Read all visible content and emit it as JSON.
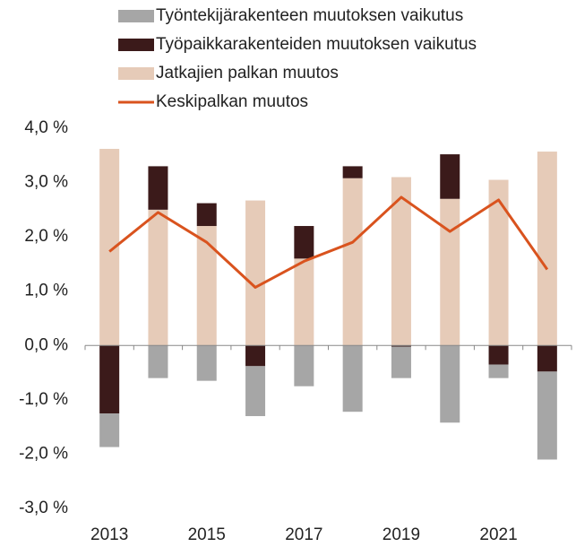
{
  "chart_data": {
    "type": "bar",
    "categories": [
      "2013",
      null,
      "2015",
      null,
      "2017",
      null,
      "2019",
      null,
      "2021",
      null
    ],
    "series": [
      {
        "name": "Työntekijärakenteen muutoksen vaikutus",
        "color": "#a6a6a6",
        "values": [
          -0.62,
          -0.6,
          -0.65,
          -0.92,
          -0.75,
          -1.22,
          -0.58,
          -1.42,
          -0.25,
          -1.62
        ]
      },
      {
        "name": "Työpaikkarakenteiden muutoksen vaikutus",
        "color": "#3b1a1a",
        "values": [
          -1.25,
          0.8,
          0.42,
          -0.38,
          0.6,
          0.22,
          -0.02,
          0.82,
          -0.35,
          -0.48
        ]
      },
      {
        "name": "Jatkajien palkan muutos",
        "color": "#e6cbb8",
        "values": [
          3.62,
          2.5,
          2.2,
          2.67,
          1.6,
          3.08,
          3.1,
          2.7,
          3.05,
          3.57
        ]
      },
      {
        "name": "Keskipalkan muutos",
        "type": "line",
        "color": "#d9531e",
        "values": [
          1.73,
          2.45,
          1.9,
          1.07,
          1.55,
          1.9,
          2.73,
          2.1,
          2.68,
          1.4
        ]
      }
    ],
    "ylim": [
      -3,
      4
    ],
    "yticks": [
      {
        "value": -3,
        "label": "-3,0 %"
      },
      {
        "value": -2,
        "label": "-2,0 %"
      },
      {
        "value": -1,
        "label": "-1,0 %"
      },
      {
        "value": 0,
        "label": "0,0 %"
      },
      {
        "value": 1,
        "label": "1,0 %"
      },
      {
        "value": 2,
        "label": "2,0 %"
      },
      {
        "value": 3,
        "label": "3,0 %"
      },
      {
        "value": 4,
        "label": "4,0 %"
      }
    ],
    "grid": false
  }
}
